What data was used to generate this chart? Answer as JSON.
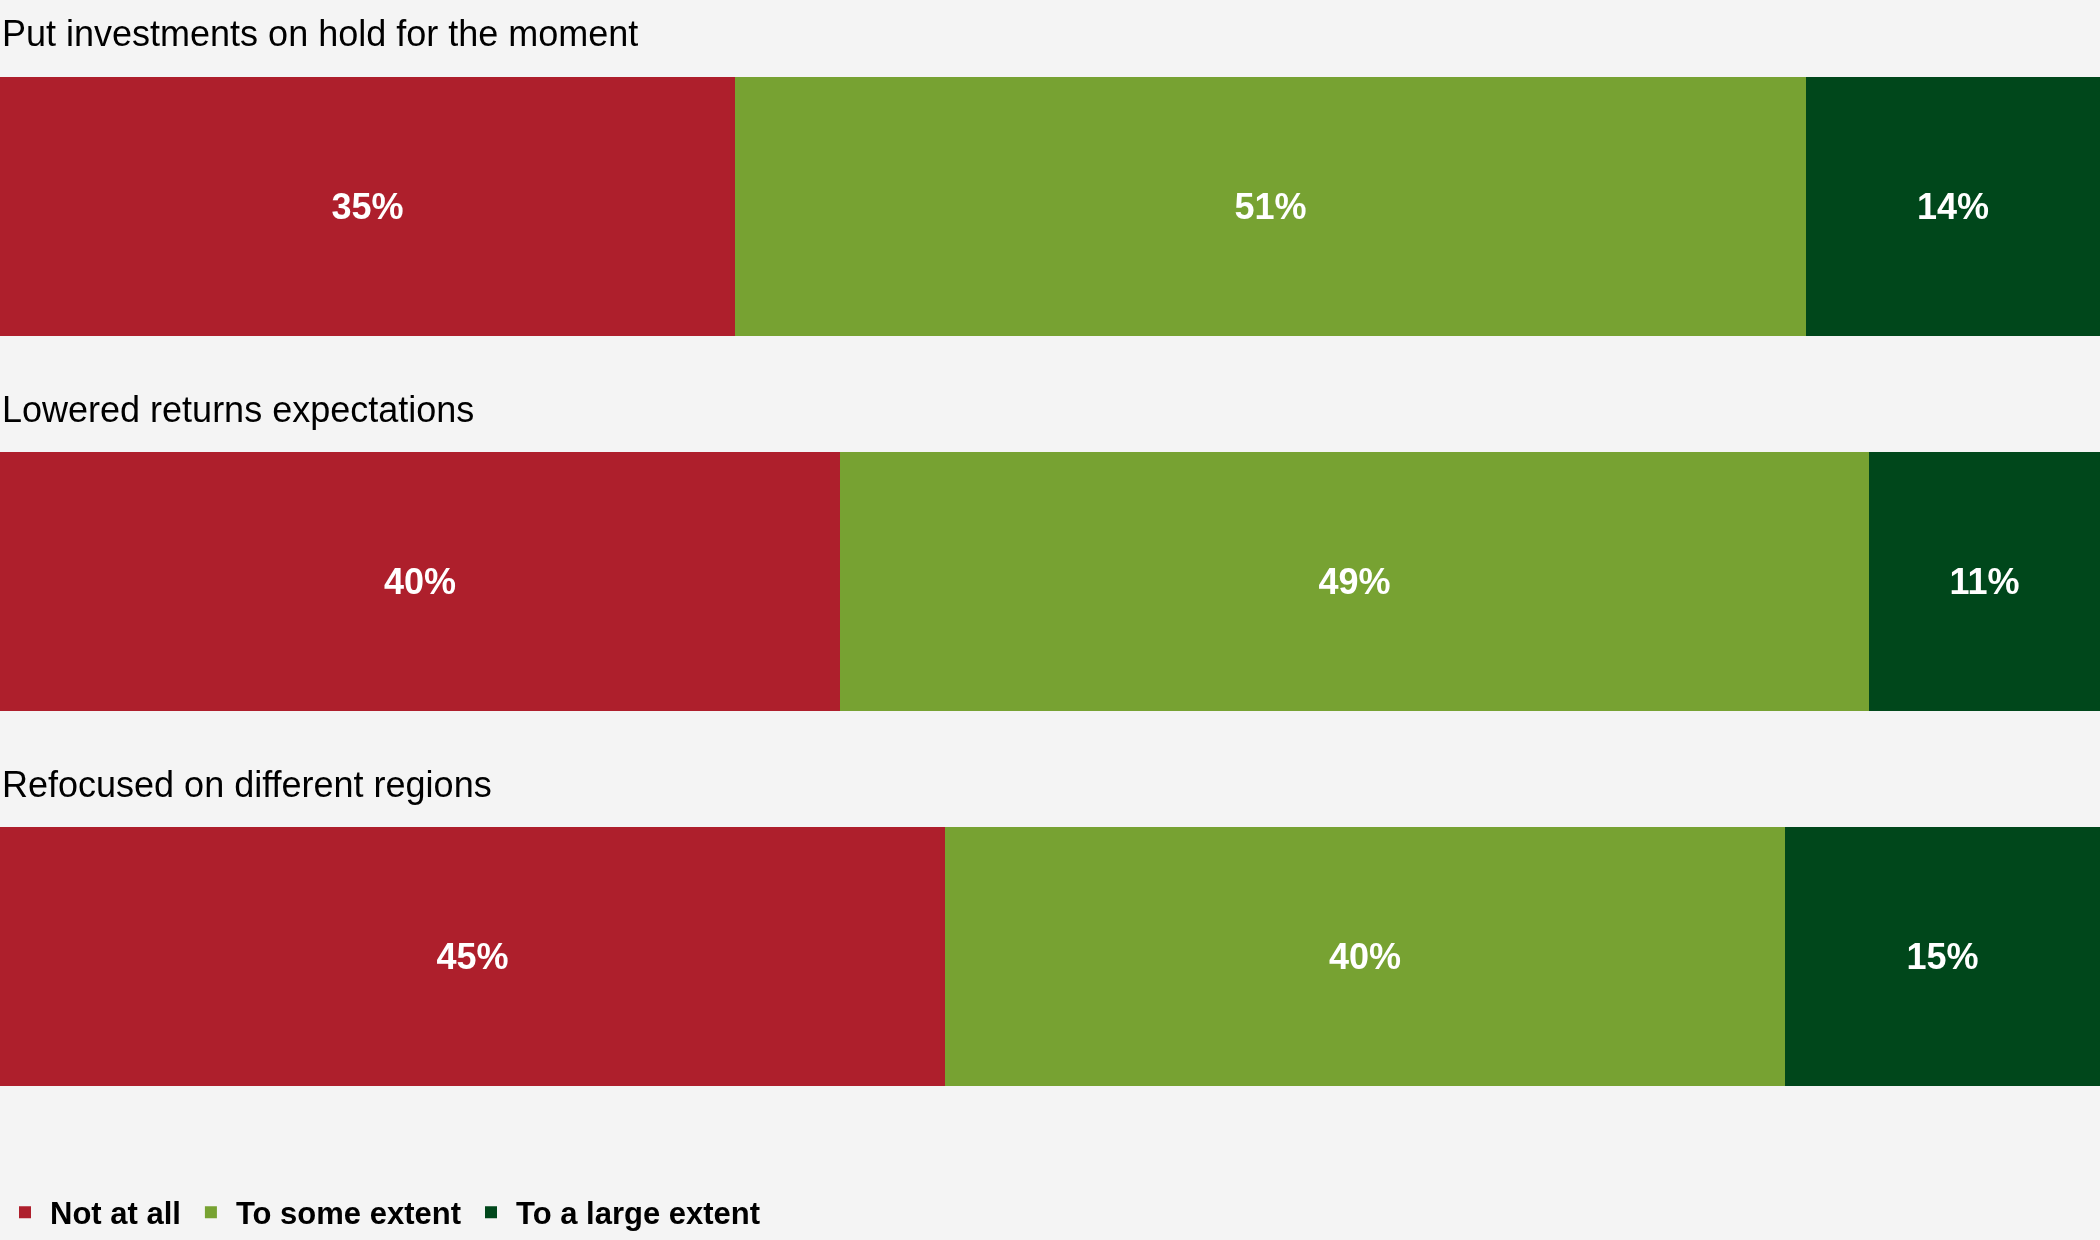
{
  "chart_data": {
    "type": "bar",
    "orientation": "horizontal",
    "stacked": true,
    "legend": "bottom left",
    "categories": [
      "Put investments on hold for the moment",
      "Lowered returns expectations",
      "Refocused on different regions"
    ],
    "series": [
      {
        "name": "Not at all",
        "color": "#ae1f2c",
        "values": [
          35,
          40,
          45
        ],
        "value_labels": [
          "35%",
          "40%",
          "45%"
        ]
      },
      {
        "name": "To some extent",
        "color": "#77a232",
        "values": [
          51,
          49,
          40
        ],
        "value_labels": [
          "51%",
          "49%",
          "40%"
        ]
      },
      {
        "name": "To a large extent",
        "color": "#00471b",
        "values": [
          14,
          11,
          15
        ],
        "value_labels": [
          "14%",
          "11%",
          "15%"
        ]
      }
    ]
  }
}
